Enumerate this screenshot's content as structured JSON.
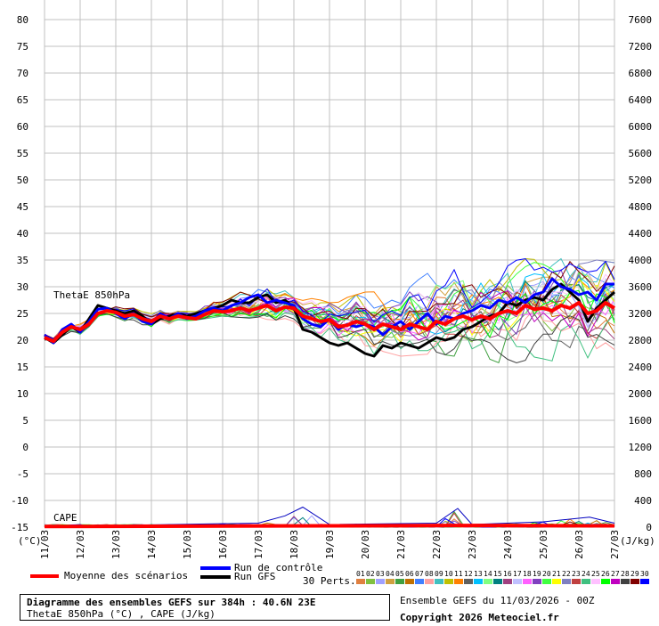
{
  "title": "Diagramme des ensembles GEFS sur 384h : 40.6N 23E",
  "subtitle": "ThetaE 850hPa (°C) , CAPE (J/kg)",
  "run_info": "Ensemble GEFS du 11/03/2026 - 00Z",
  "copyright": "Copyright 2026 Meteociel.fr",
  "legend": {
    "mean": "Moyenne des scénarios",
    "control": "Run de contrôle",
    "gfs": "Run GFS",
    "perts": "30 Perts.",
    "pert_labels": [
      "01",
      "02",
      "03",
      "04",
      "05",
      "06",
      "07",
      "08",
      "09",
      "10",
      "11",
      "12",
      "13",
      "14",
      "15",
      "16",
      "17",
      "18",
      "19",
      "20",
      "21",
      "22",
      "23",
      "24",
      "25",
      "26",
      "27",
      "28",
      "29",
      "30"
    ],
    "pert_colors": [
      "#e08040",
      "#80c040",
      "#a0a0ff",
      "#d0a040",
      "#40a040",
      "#c07000",
      "#4080ff",
      "#ffa0a0",
      "#40c0c0",
      "#c0c000",
      "#ff8000",
      "#606060",
      "#00c0ff",
      "#80ff80",
      "#008080",
      "#a04080",
      "#c0c0ff",
      "#ff60ff",
      "#8040c0",
      "#40ff40",
      "#ffff00",
      "#8080c0",
      "#c04040",
      "#40c080",
      "#ffc0ff",
      "#00ff00",
      "#c000c0",
      "#404040",
      "#800000",
      "#0000ff"
    ]
  },
  "colors": {
    "mean": "#ff0000",
    "control": "#0000ff",
    "gfs": "#000000",
    "grid": "#c0c0c0"
  },
  "chart_data": {
    "type": "line",
    "left_axis": {
      "unit_label": "(°C)",
      "range": [
        -15,
        80
      ],
      "ticks": [
        80,
        75,
        70,
        65,
        60,
        55,
        50,
        45,
        40,
        35,
        30,
        25,
        20,
        15,
        10,
        5,
        0,
        -5,
        -10,
        -15
      ]
    },
    "right_axis": {
      "unit_label": "(J/kg)",
      "range": [
        0,
        7600
      ],
      "ticks": [
        7600,
        7200,
        6800,
        6400,
        6000,
        5600,
        5200,
        4800,
        4400,
        4000,
        3600,
        3200,
        2800,
        2400,
        2000,
        1600,
        1200,
        800,
        400,
        0
      ]
    },
    "x_labels": [
      "11/03",
      "12/03",
      "13/03",
      "14/03",
      "15/03",
      "16/03",
      "17/03",
      "18/03",
      "19/03",
      "20/03",
      "21/03",
      "22/03",
      "23/03",
      "24/03",
      "25/03",
      "26/03",
      "27/03"
    ],
    "x_range": [
      0,
      16
    ],
    "annotations": [
      "ThetaE 850hPa",
      "CAPE"
    ],
    "thetae_mean": [
      [
        0,
        20.5
      ],
      [
        0.25,
        19.8
      ],
      [
        0.5,
        21.5
      ],
      [
        0.75,
        22.5
      ],
      [
        1,
        22.0
      ],
      [
        1.25,
        23.0
      ],
      [
        1.5,
        25.0
      ],
      [
        1.75,
        25.5
      ],
      [
        2,
        25.2
      ],
      [
        2.25,
        24.5
      ],
      [
        2.5,
        24.8
      ],
      [
        2.75,
        24.0
      ],
      [
        3,
        23.5
      ],
      [
        3.25,
        24.5
      ],
      [
        3.5,
        24.0
      ],
      [
        3.75,
        24.5
      ],
      [
        4,
        24.2
      ],
      [
        4.25,
        24.0
      ],
      [
        4.5,
        24.8
      ],
      [
        4.75,
        25.5
      ],
      [
        5,
        25.3
      ],
      [
        5.25,
        25.5
      ],
      [
        5.5,
        26.0
      ],
      [
        5.75,
        25.5
      ],
      [
        6,
        26.0
      ],
      [
        6.25,
        26.5
      ],
      [
        6.5,
        25.5
      ],
      [
        6.75,
        26.2
      ],
      [
        7,
        26.0
      ],
      [
        7.25,
        24.5
      ],
      [
        7.5,
        24.0
      ],
      [
        7.75,
        23.5
      ],
      [
        8,
        23.8
      ],
      [
        8.25,
        22.5
      ],
      [
        8.5,
        22.8
      ],
      [
        8.75,
        23.5
      ],
      [
        9,
        23.0
      ],
      [
        9.25,
        22.0
      ],
      [
        9.5,
        23.0
      ],
      [
        9.75,
        22.5
      ],
      [
        10,
        22.0
      ],
      [
        10.25,
        23.0
      ],
      [
        10.5,
        22.5
      ],
      [
        10.75,
        22.0
      ],
      [
        11,
        23.5
      ],
      [
        11.25,
        23.0
      ],
      [
        11.5,
        24.0
      ],
      [
        11.75,
        24.5
      ],
      [
        12,
        23.8
      ],
      [
        12.25,
        24.5
      ],
      [
        12.5,
        24.0
      ],
      [
        12.75,
        25.0
      ],
      [
        13,
        25.5
      ],
      [
        13.25,
        25.0
      ],
      [
        13.5,
        26.5
      ],
      [
        13.75,
        25.8
      ],
      [
        14,
        26.0
      ],
      [
        14.25,
        25.5
      ],
      [
        14.5,
        26.5
      ],
      [
        14.75,
        26.0
      ],
      [
        15,
        27.0
      ],
      [
        15.25,
        25.0
      ],
      [
        15.5,
        25.5
      ],
      [
        15.75,
        27.0
      ],
      [
        16,
        26.0
      ]
    ],
    "thetae_control": [
      [
        0,
        21.0
      ],
      [
        0.25,
        19.5
      ],
      [
        0.5,
        22.0
      ],
      [
        0.75,
        23.0
      ],
      [
        1,
        21.5
      ],
      [
        1.25,
        23.5
      ],
      [
        1.5,
        25.8
      ],
      [
        1.75,
        26.0
      ],
      [
        2,
        25.0
      ],
      [
        2.25,
        24.0
      ],
      [
        2.5,
        25.0
      ],
      [
        2.75,
        23.5
      ],
      [
        3,
        23.0
      ],
      [
        3.25,
        25.0
      ],
      [
        3.5,
        24.0
      ],
      [
        3.75,
        25.0
      ],
      [
        4,
        24.0
      ],
      [
        4.25,
        24.5
      ],
      [
        4.5,
        25.5
      ],
      [
        4.75,
        26.0
      ],
      [
        5,
        25.5
      ],
      [
        5.25,
        26.5
      ],
      [
        5.5,
        27.0
      ],
      [
        5.75,
        28.0
      ],
      [
        6,
        28.5
      ],
      [
        6.25,
        27.0
      ],
      [
        6.5,
        27.5
      ],
      [
        6.75,
        27.0
      ],
      [
        7,
        26.5
      ],
      [
        7.25,
        24.0
      ],
      [
        7.5,
        23.0
      ],
      [
        7.75,
        22.5
      ],
      [
        8,
        24.0
      ],
      [
        8.25,
        22.0
      ],
      [
        8.5,
        23.0
      ],
      [
        8.75,
        22.5
      ],
      [
        9,
        23.0
      ],
      [
        9.25,
        22.5
      ],
      [
        9.5,
        21.0
      ],
      [
        9.75,
        22.5
      ],
      [
        10,
        23.5
      ],
      [
        10.25,
        22.0
      ],
      [
        10.5,
        23.5
      ],
      [
        10.75,
        25.0
      ],
      [
        11,
        23.0
      ],
      [
        11.25,
        24.5
      ],
      [
        11.5,
        24.0
      ],
      [
        11.75,
        25.0
      ],
      [
        12,
        25.5
      ],
      [
        12.25,
        26.5
      ],
      [
        12.5,
        26.0
      ],
      [
        12.75,
        27.5
      ],
      [
        13,
        27.0
      ],
      [
        13.25,
        28.0
      ],
      [
        13.5,
        27.0
      ],
      [
        13.75,
        28.5
      ],
      [
        14,
        29.0
      ],
      [
        14.25,
        31.5
      ],
      [
        14.5,
        30.0
      ],
      [
        14.75,
        29.5
      ],
      [
        15,
        28.5
      ],
      [
        15.25,
        29.0
      ],
      [
        15.5,
        27.5
      ],
      [
        15.75,
        30.5
      ],
      [
        16,
        30.5
      ]
    ],
    "thetae_gfs": [
      [
        0,
        20.5
      ],
      [
        0.25,
        19.5
      ],
      [
        0.5,
        21.0
      ],
      [
        0.75,
        22.5
      ],
      [
        1,
        21.5
      ],
      [
        1.25,
        24.0
      ],
      [
        1.5,
        26.5
      ],
      [
        1.75,
        26.0
      ],
      [
        2,
        25.5
      ],
      [
        2.25,
        25.0
      ],
      [
        2.5,
        25.5
      ],
      [
        2.75,
        24.5
      ],
      [
        3,
        23.0
      ],
      [
        3.25,
        24.0
      ],
      [
        3.5,
        24.5
      ],
      [
        3.75,
        25.0
      ],
      [
        4,
        24.5
      ],
      [
        4.25,
        25.0
      ],
      [
        4.5,
        25.5
      ],
      [
        4.75,
        26.0
      ],
      [
        5,
        26.5
      ],
      [
        5.25,
        27.5
      ],
      [
        5.5,
        27.0
      ],
      [
        5.75,
        27.0
      ],
      [
        6,
        28.0
      ],
      [
        6.25,
        28.5
      ],
      [
        6.5,
        27.0
      ],
      [
        6.75,
        27.5
      ],
      [
        7,
        26.0
      ],
      [
        7.25,
        22.0
      ],
      [
        7.5,
        21.5
      ],
      [
        7.75,
        20.5
      ],
      [
        8,
        19.5
      ],
      [
        8.25,
        19.0
      ],
      [
        8.5,
        19.5
      ],
      [
        8.75,
        18.5
      ],
      [
        9,
        17.5
      ],
      [
        9.25,
        17.0
      ],
      [
        9.5,
        19.0
      ],
      [
        9.75,
        18.5
      ],
      [
        10,
        19.5
      ],
      [
        10.25,
        19.0
      ],
      [
        10.5,
        18.5
      ],
      [
        10.75,
        19.5
      ],
      [
        11,
        20.5
      ],
      [
        11.25,
        20.0
      ],
      [
        11.5,
        20.5
      ],
      [
        11.75,
        22.0
      ],
      [
        12,
        22.5
      ],
      [
        12.25,
        23.5
      ],
      [
        12.5,
        24.5
      ],
      [
        12.75,
        25.0
      ],
      [
        13,
        27.0
      ],
      [
        13.25,
        26.5
      ],
      [
        13.5,
        27.5
      ],
      [
        13.75,
        28.0
      ],
      [
        14,
        27.5
      ],
      [
        14.25,
        29.5
      ],
      [
        14.5,
        30.5
      ],
      [
        14.75,
        29.0
      ],
      [
        15,
        27.5
      ],
      [
        15.25,
        23.5
      ],
      [
        15.5,
        26.0
      ],
      [
        15.75,
        27.5
      ],
      [
        16,
        29.0
      ]
    ],
    "thetae_spread_min": [
      [
        0,
        20.0
      ],
      [
        1,
        21.0
      ],
      [
        2,
        24.0
      ],
      [
        3,
        22.5
      ],
      [
        4,
        23.5
      ],
      [
        5,
        24.5
      ],
      [
        6,
        24.0
      ],
      [
        7,
        23.5
      ],
      [
        8,
        18.0
      ],
      [
        9,
        17.5
      ],
      [
        10,
        17.0
      ],
      [
        11,
        17.5
      ],
      [
        12,
        16.5
      ],
      [
        13,
        15.5
      ],
      [
        14,
        16.5
      ],
      [
        15,
        15.0
      ],
      [
        16,
        14.0
      ]
    ],
    "thetae_spread_max": [
      [
        0,
        21.5
      ],
      [
        1,
        23.0
      ],
      [
        2,
        26.5
      ],
      [
        3,
        25.5
      ],
      [
        4,
        26.0
      ],
      [
        5,
        28.5
      ],
      [
        6,
        31.0
      ],
      [
        7,
        29.0
      ],
      [
        8,
        27.0
      ],
      [
        9,
        29.0
      ],
      [
        10,
        30.0
      ],
      [
        11,
        34.5
      ],
      [
        12,
        33.5
      ],
      [
        13,
        35.5
      ],
      [
        14,
        35.0
      ],
      [
        15,
        35.5
      ],
      [
        16,
        34.5
      ]
    ],
    "cape_mean": [
      [
        0,
        10
      ],
      [
        4,
        15
      ],
      [
        8,
        20
      ],
      [
        12,
        25
      ],
      [
        16,
        20
      ]
    ],
    "cape_max": [
      [
        0,
        10
      ],
      [
        6,
        60
      ],
      [
        6.75,
        170
      ],
      [
        7.25,
        300
      ],
      [
        8,
        40
      ],
      [
        11,
        60
      ],
      [
        11.6,
        280
      ],
      [
        12,
        40
      ],
      [
        14,
        80
      ],
      [
        15.3,
        150
      ],
      [
        16,
        60
      ]
    ]
  }
}
